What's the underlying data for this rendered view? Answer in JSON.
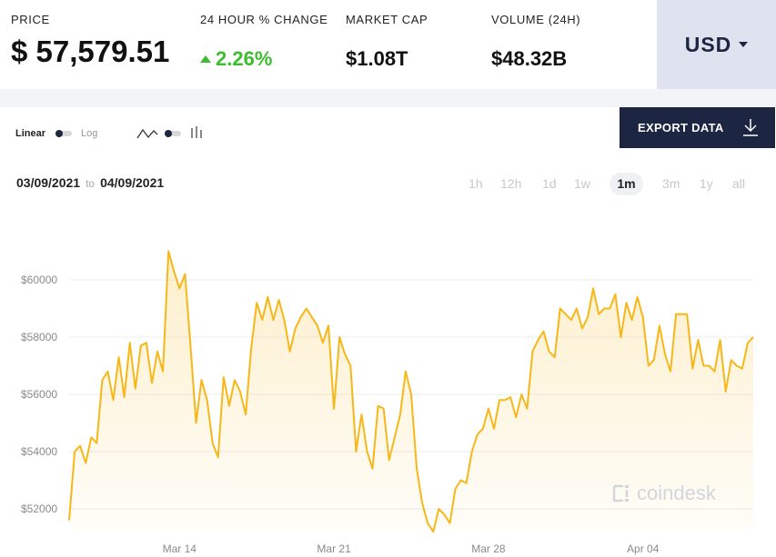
{
  "stats": {
    "price_label": "PRICE",
    "price_value": "$ 57,579.51",
    "change_label": "24 HOUR % CHANGE",
    "change_value": "2.26%",
    "marketcap_label": "MARKET CAP",
    "marketcap_value": "$1.08T",
    "volume_label": "VOLUME (24H)",
    "volume_value": "$48.32B"
  },
  "currency": {
    "label": "USD"
  },
  "controls": {
    "scale_linear": "Linear",
    "scale_log": "Log",
    "export_label": "EXPORT DATA",
    "date_from": "03/09/2021",
    "date_to_word": "to",
    "date_to": "04/09/2021",
    "ranges": [
      "1h",
      "12h",
      "1d",
      "1w",
      "1m",
      "3m",
      "1y",
      "all"
    ],
    "active_range": "1m"
  },
  "watermark": "coindesk",
  "colors": {
    "line": "#f7b718",
    "accent_navy": "#1c2541",
    "up": "#3bbd2e",
    "currency_bg": "#dfe3f0"
  },
  "chart_data": {
    "type": "area",
    "ylim": [
      51000,
      61500
    ],
    "yticks": [
      52000,
      54000,
      56000,
      58000,
      60000
    ],
    "ytick_labels": [
      "$52000",
      "$54000",
      "$56000",
      "$58000",
      "$60000"
    ],
    "x_range": [
      "2021-03-09",
      "2021-04-09"
    ],
    "xticks": [
      "2021-03-14",
      "2021-03-21",
      "2021-03-28",
      "2021-04-04"
    ],
    "xtick_labels": [
      "Mar 14",
      "Mar 21",
      "Mar 28",
      "Apr 04"
    ],
    "grid": "horizontal",
    "series": [
      {
        "x": [
          "2021-03-09 00:00",
          "2021-03-09 06:00",
          "2021-03-09 12:00",
          "2021-03-09 18:00",
          "2021-03-10 00:00",
          "2021-03-10 06:00",
          "2021-03-10 12:00",
          "2021-03-10 18:00",
          "2021-03-11 00:00",
          "2021-03-11 06:00",
          "2021-03-11 12:00",
          "2021-03-11 18:00",
          "2021-03-12 00:00",
          "2021-03-12 06:00",
          "2021-03-12 12:00",
          "2021-03-12 18:00",
          "2021-03-13 00:00",
          "2021-03-13 06:00",
          "2021-03-13 12:00",
          "2021-03-13 18:00",
          "2021-03-14 00:00",
          "2021-03-14 06:00",
          "2021-03-14 12:00",
          "2021-03-14 18:00",
          "2021-03-15 00:00",
          "2021-03-15 06:00",
          "2021-03-15 12:00",
          "2021-03-15 18:00",
          "2021-03-16 00:00",
          "2021-03-16 06:00",
          "2021-03-16 12:00",
          "2021-03-16 18:00",
          "2021-03-17 00:00",
          "2021-03-17 06:00",
          "2021-03-17 12:00",
          "2021-03-17 18:00",
          "2021-03-18 00:00",
          "2021-03-18 06:00",
          "2021-03-18 12:00",
          "2021-03-18 18:00",
          "2021-03-19 00:00",
          "2021-03-19 06:00",
          "2021-03-19 12:00",
          "2021-03-19 18:00",
          "2021-03-20 00:00",
          "2021-03-20 06:00",
          "2021-03-20 12:00",
          "2021-03-20 18:00",
          "2021-03-21 00:00",
          "2021-03-21 06:00",
          "2021-03-21 12:00",
          "2021-03-21 18:00",
          "2021-03-22 00:00",
          "2021-03-22 06:00",
          "2021-03-22 12:00",
          "2021-03-22 18:00",
          "2021-03-23 00:00",
          "2021-03-23 06:00",
          "2021-03-23 12:00",
          "2021-03-23 18:00",
          "2021-03-24 00:00",
          "2021-03-24 06:00",
          "2021-03-24 12:00",
          "2021-03-24 18:00",
          "2021-03-25 00:00",
          "2021-03-25 06:00",
          "2021-03-25 12:00",
          "2021-03-25 18:00",
          "2021-03-26 00:00",
          "2021-03-26 06:00",
          "2021-03-26 12:00",
          "2021-03-26 18:00",
          "2021-03-27 00:00",
          "2021-03-27 06:00",
          "2021-03-27 12:00",
          "2021-03-27 18:00",
          "2021-03-28 00:00",
          "2021-03-28 06:00",
          "2021-03-28 12:00",
          "2021-03-28 18:00",
          "2021-03-29 00:00",
          "2021-03-29 06:00",
          "2021-03-29 12:00",
          "2021-03-29 18:00",
          "2021-03-30 00:00",
          "2021-03-30 06:00",
          "2021-03-30 12:00",
          "2021-03-30 18:00",
          "2021-03-31 00:00",
          "2021-03-31 06:00",
          "2021-03-31 12:00",
          "2021-03-31 18:00",
          "2021-04-01 00:00",
          "2021-04-01 06:00",
          "2021-04-01 12:00",
          "2021-04-01 18:00",
          "2021-04-02 00:00",
          "2021-04-02 06:00",
          "2021-04-02 12:00",
          "2021-04-02 18:00",
          "2021-04-03 00:00",
          "2021-04-03 06:00",
          "2021-04-03 12:00",
          "2021-04-03 18:00",
          "2021-04-04 00:00",
          "2021-04-04 06:00",
          "2021-04-04 12:00",
          "2021-04-04 18:00",
          "2021-04-05 00:00",
          "2021-04-05 06:00",
          "2021-04-05 12:00",
          "2021-04-05 18:00",
          "2021-04-06 00:00",
          "2021-04-06 06:00",
          "2021-04-06 12:00",
          "2021-04-06 18:00",
          "2021-04-07 00:00",
          "2021-04-07 06:00",
          "2021-04-07 12:00",
          "2021-04-07 18:00",
          "2021-04-08 00:00",
          "2021-04-08 06:00",
          "2021-04-08 12:00",
          "2021-04-08 18:00",
          "2021-04-09 00:00"
        ],
        "values": [
          51600,
          54000,
          54200,
          53600,
          54500,
          54300,
          56500,
          56800,
          55800,
          57300,
          55900,
          57800,
          56200,
          57700,
          57800,
          56400,
          57500,
          56800,
          61000,
          60300,
          59700,
          60200,
          57700,
          55000,
          56500,
          55800,
          54300,
          53800,
          56600,
          55600,
          56500,
          56100,
          55300,
          57600,
          59200,
          58600,
          59400,
          58600,
          59300,
          58600,
          57500,
          58300,
          58700,
          59000,
          58700,
          58400,
          57800,
          58400,
          55500,
          58000,
          57400,
          57000,
          54000,
          55300,
          54000,
          53400,
          55600,
          55500,
          53700,
          54500,
          55300,
          56800,
          56000,
          53400,
          52200,
          51500,
          51200,
          52000,
          51800,
          51500,
          52700,
          53000,
          52900,
          54000,
          54600,
          54800,
          55500,
          54800,
          55800,
          55800,
          55900,
          55200,
          56000,
          55500,
          57500,
          57900,
          58200,
          57500,
          57300,
          59000,
          58800,
          58600,
          59000,
          58300,
          58700,
          59700,
          58800,
          59000,
          59000,
          59500,
          58000,
          59200,
          58600,
          59400,
          58700,
          57000,
          57200,
          58400,
          57400,
          56800,
          58800,
          58800,
          58800,
          56900,
          57900,
          57000,
          57000,
          56800,
          57900,
          56100,
          57200,
          57000,
          56900,
          57800,
          58000
        ]
      }
    ]
  }
}
